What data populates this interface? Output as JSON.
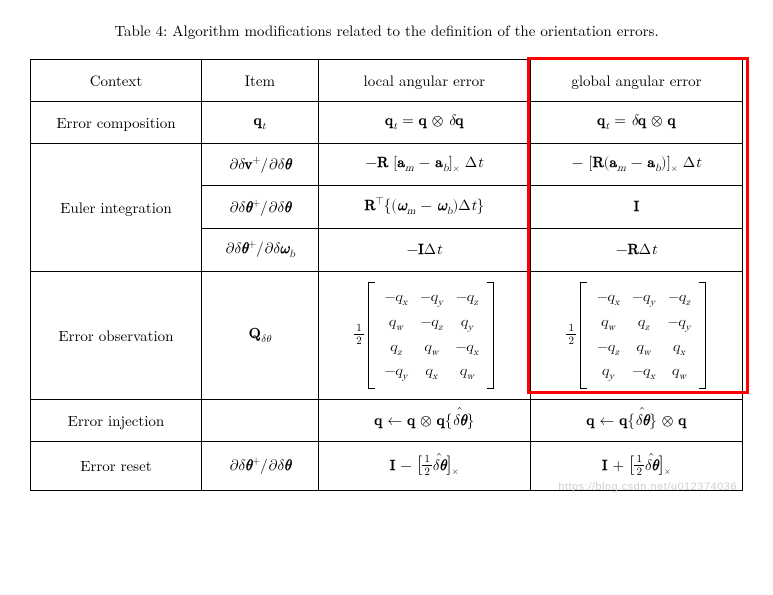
{
  "caption": "Table 4: Algorithm modifications related to the definition of the orientation errors.",
  "headers": {
    "context": "Context",
    "item": "Item",
    "local": "local angular error",
    "global": "global angular error"
  },
  "rows": {
    "error_composition": {
      "context": "Error composition",
      "item": "q",
      "item_sub": "t",
      "local": "q_t = q ⊗ δq",
      "global": "q_t = δq ⊗ q"
    },
    "euler_integration": {
      "context": "Euler integration",
      "line1": {
        "item": "∂δv⁺/∂δθ",
        "local": "−R [a_m − a_b]_× Δt",
        "global": "− [R(a_m − a_b)]_× Δt"
      },
      "line2": {
        "item": "∂δθ⁺/∂δθ",
        "local": "Rᵀ{(ω_m − ω_b)Δt}",
        "global": "I"
      },
      "line3": {
        "item": "∂δθ⁺/∂δω_b",
        "local": "−IΔt",
        "global": "−RΔt"
      }
    },
    "error_observation": {
      "context": "Error observation",
      "item": "Q_δθ",
      "matrix_prefix_num": "1",
      "matrix_prefix_den": "2",
      "local_matrix": [
        [
          "−q_x",
          "−q_y",
          "−q_z"
        ],
        [
          "q_w",
          "−q_z",
          "q_y"
        ],
        [
          "q_z",
          "q_w",
          "−q_x"
        ],
        [
          "−q_y",
          "q_x",
          "q_w"
        ]
      ],
      "global_matrix": [
        [
          "−q_x",
          "−q_y",
          "−q_z"
        ],
        [
          "q_w",
          "q_z",
          "−q_y"
        ],
        [
          "−q_z",
          "q_w",
          "q_x"
        ],
        [
          "q_y",
          "−q_x",
          "q_w"
        ]
      ]
    },
    "error_injection": {
      "context": "Error injection",
      "item": "",
      "local": "q ← q ⊗ q{δθ̂}",
      "global": "q ← q{δθ̂} ⊗ q"
    },
    "error_reset": {
      "context": "Error reset",
      "item": "∂δθ⁺/∂δθ",
      "local": "I − [½δθ̂]_×",
      "global": "I + [½δθ̂]_×"
    }
  },
  "styling": {
    "highlight_color": "#ff0000",
    "highlight_column": "global",
    "border_color": "#000000",
    "background": "#ffffff",
    "font_size_base": 15,
    "matrix_font_size": 14,
    "caption_font_size": 15,
    "watermark_color": "#d0d0d0"
  },
  "watermark": "https://blog.csdn.net/u012374036"
}
